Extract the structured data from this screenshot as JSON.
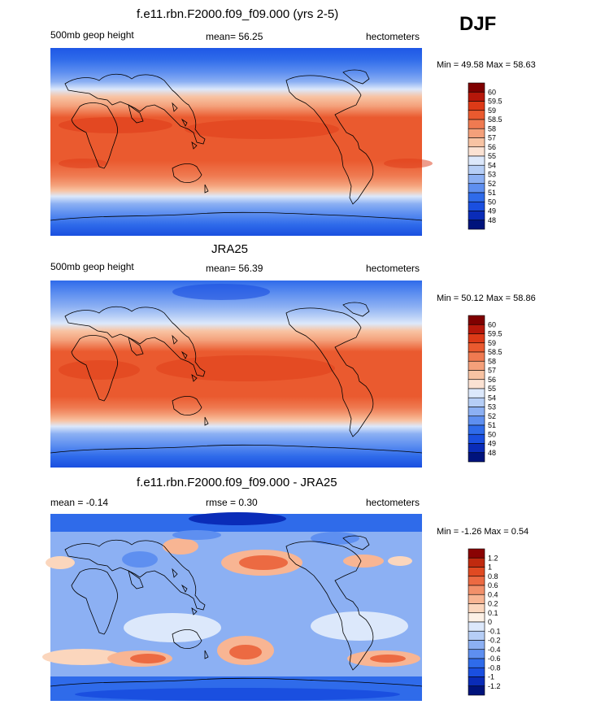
{
  "season": "DJF",
  "colors": {
    "abs_scale": [
      "#00137c",
      "#0a2cb8",
      "#1a4fe0",
      "#2f6bea",
      "#5e8ff0",
      "#8cb0f3",
      "#b6cef6",
      "#dce8fb",
      "#fbe2d3",
      "#f8c3a3",
      "#f4a07a",
      "#ef7a51",
      "#ea5a2f",
      "#dd3a17",
      "#b6170a",
      "#7f0000"
    ],
    "diff_scale": [
      "#00137c",
      "#0a2cb8",
      "#1a4fe0",
      "#2f6bea",
      "#5e8ff0",
      "#8cb0f3",
      "#b6cef6",
      "#dce8fb",
      "#fdf1e6",
      "#fbd6bd",
      "#f8b593",
      "#f2906a",
      "#ec6a42",
      "#e04a22",
      "#c02a0f",
      "#8a0303"
    ]
  },
  "chart_data": [
    {
      "type": "heatmap",
      "title": "f.e11.rbn.F2000.f09_f09.000 (yrs 2-5)",
      "left_label": "500mb geop height",
      "mean_label": "mean=  56.25",
      "units": "hectometers",
      "min_max": "Min =  49.58 Max =  58.63",
      "legend_levels": [
        "48",
        "49",
        "50",
        "51",
        "52",
        "53",
        "54",
        "55",
        "56",
        "57",
        "58",
        "58.5",
        "59",
        "59.5",
        "60"
      ],
      "x_range": [
        0,
        360
      ],
      "y_range": [
        -90,
        90
      ]
    },
    {
      "type": "heatmap",
      "title": "JRA25",
      "left_label": "500mb geop height",
      "mean_label": "mean=  56.39",
      "units": "hectometers",
      "min_max": "Min =  50.12 Max =  58.86",
      "legend_levels": [
        "48",
        "49",
        "50",
        "51",
        "52",
        "53",
        "54",
        "55",
        "56",
        "57",
        "58",
        "58.5",
        "59",
        "59.5",
        "60"
      ],
      "x_range": [
        0,
        360
      ],
      "y_range": [
        -90,
        90
      ]
    },
    {
      "type": "heatmap",
      "title": "f.e11.rbn.F2000.f09_f09.000 - JRA25",
      "left_label": "mean =  -0.14",
      "mean_label": "rmse =   0.30",
      "units": "hectometers",
      "min_max": "Min =  -1.26 Max =   0.54",
      "legend_levels": [
        "-1.2",
        "-1",
        "-0.8",
        "-0.6",
        "-0.4",
        "-0.2",
        "-0.1",
        "0",
        "0.1",
        "0.2",
        "0.4",
        "0.6",
        "0.8",
        "1",
        "1.2"
      ],
      "x_range": [
        0,
        360
      ],
      "y_range": [
        -90,
        90
      ]
    }
  ]
}
